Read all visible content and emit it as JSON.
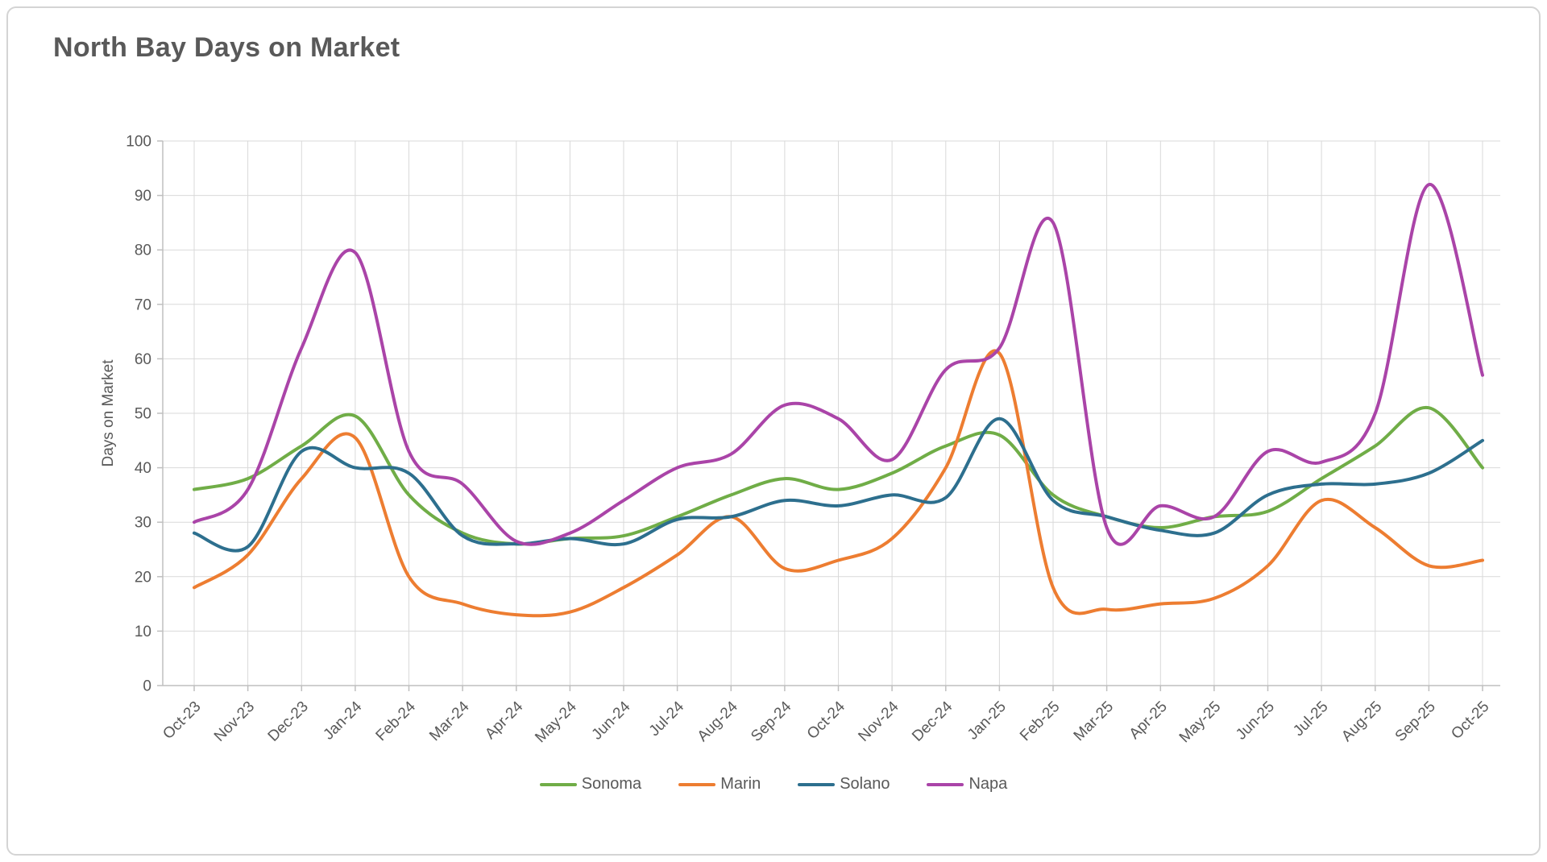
{
  "chart_data": {
    "type": "line",
    "title": "North Bay Days on Market",
    "xlabel": "",
    "ylabel": "Days on Market",
    "ylim": [
      0,
      100
    ],
    "yticks": [
      0,
      10,
      20,
      30,
      40,
      50,
      60,
      70,
      80,
      90,
      100
    ],
    "grid": true,
    "line_style": "smooth",
    "legend_position": "bottom",
    "colors": {
      "grid": "#d9d9d9",
      "axis": "#bfbfbf",
      "text": "#595959",
      "title": "#595959"
    },
    "categories": [
      "Oct-23",
      "Nov-23",
      "Dec-23",
      "Jan-24",
      "Feb-24",
      "Mar-24",
      "Apr-24",
      "May-24",
      "Jun-24",
      "Jul-24",
      "Aug-24",
      "Sep-24",
      "Oct-24",
      "Nov-24",
      "Dec-24",
      "Jan-25",
      "Feb-25",
      "Mar-25",
      "Apr-25",
      "May-25",
      "Jun-25",
      "Jul-25",
      "Aug-25",
      "Sep-25",
      "Oct-25"
    ],
    "series": [
      {
        "name": "Sonoma",
        "color": "#70ad47",
        "values": [
          36,
          38,
          44,
          49.5,
          35,
          28,
          26,
          27,
          27.5,
          31,
          35,
          38,
          36,
          39,
          44,
          46,
          35,
          31,
          29,
          31,
          32,
          38,
          44,
          51,
          40
        ]
      },
      {
        "name": "Marin",
        "color": "#ed7d31",
        "values": [
          18,
          24,
          38,
          45.5,
          20,
          15,
          13,
          13.5,
          18,
          24,
          31,
          21.5,
          23,
          27,
          40,
          61,
          18,
          14,
          15,
          16,
          22,
          34,
          29,
          22,
          23
        ]
      },
      {
        "name": "Solano",
        "color": "#2d6f8e",
        "values": [
          28,
          25.5,
          43,
          40,
          39,
          27.5,
          26,
          27,
          26,
          30.5,
          31,
          34,
          33,
          35,
          34.5,
          49,
          34,
          31,
          28.5,
          28,
          35,
          37,
          37,
          39,
          45
        ]
      },
      {
        "name": "Napa",
        "color": "#aa44a8",
        "values": [
          30,
          36,
          62,
          79.5,
          43,
          37,
          26.5,
          28,
          34,
          40,
          42.5,
          51.5,
          49,
          41.5,
          58,
          62,
          85,
          29,
          33,
          31,
          43,
          41,
          50,
          92,
          57
        ]
      }
    ]
  }
}
